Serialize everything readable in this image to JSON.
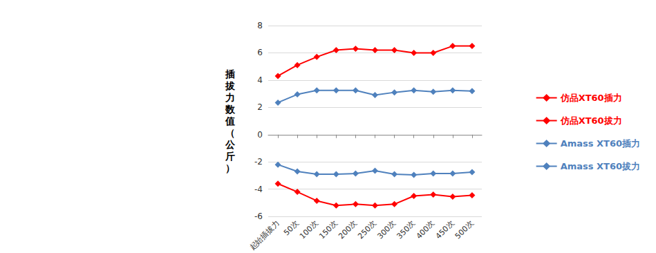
{
  "chart_data": {
    "type": "line",
    "y_label": "插拔力数值（公斤）",
    "categories": [
      "起始插拔力",
      "50次",
      "100次",
      "150次",
      "200次",
      "250次",
      "300次",
      "350次",
      "400次",
      "450次",
      "500次"
    ],
    "series": [
      {
        "name": "仿品XT60插力",
        "color": "#ff0000",
        "values": [
          4.3,
          5.1,
          5.7,
          6.2,
          6.3,
          6.2,
          6.2,
          6.0,
          6.0,
          6.5,
          6.5
        ]
      },
      {
        "name": "仿品XT60拔力",
        "color": "#ff0000",
        "values": [
          -3.6,
          -4.2,
          -4.85,
          -5.2,
          -5.1,
          -5.2,
          -5.1,
          -4.5,
          -4.4,
          -4.55,
          -4.45
        ]
      },
      {
        "name": "Amass XT60插力",
        "color": "#4f81bd",
        "values": [
          2.35,
          2.95,
          3.25,
          3.25,
          3.25,
          2.9,
          3.1,
          3.25,
          3.15,
          3.25,
          3.2
        ]
      },
      {
        "name": "Amass XT60拔力",
        "color": "#4f81bd",
        "values": [
          -2.2,
          -2.7,
          -2.9,
          -2.9,
          -2.85,
          -2.65,
          -2.9,
          -2.95,
          -2.85,
          -2.85,
          -2.75
        ]
      }
    ],
    "ylim": [
      -6,
      8
    ],
    "yticks": [
      -6,
      -4,
      -2,
      0,
      2,
      4,
      6,
      8
    ],
    "grid": true,
    "legend": "right",
    "marker": "diamond"
  }
}
